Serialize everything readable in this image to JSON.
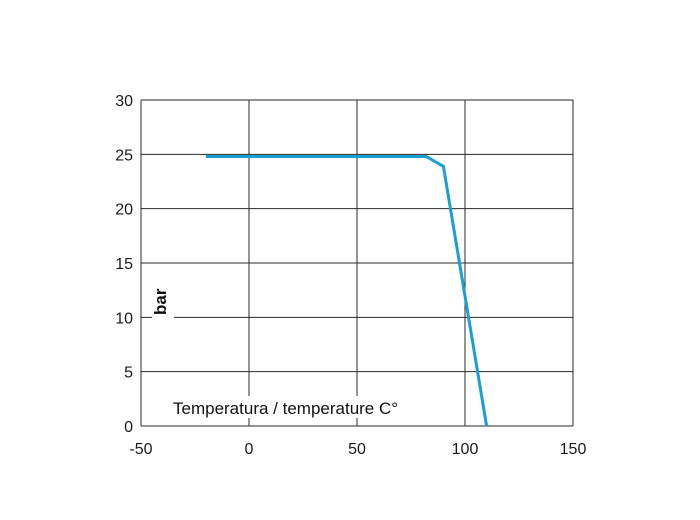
{
  "chart_data": {
    "type": "line",
    "xlabel": "Temperatura / temperature C°",
    "ylabel": "bar",
    "xlim": [
      -50,
      150
    ],
    "ylim": [
      0,
      30
    ],
    "x_ticks": [
      -50,
      0,
      50,
      100,
      150
    ],
    "y_ticks": [
      0,
      5,
      10,
      15,
      20,
      25,
      30
    ],
    "grid": true,
    "series": [
      {
        "color": "#1a9fd4",
        "points": [
          {
            "x": -20,
            "y": 24.8
          },
          {
            "x": 82,
            "y": 24.8
          },
          {
            "x": 90,
            "y": 23.9
          },
          {
            "x": 110,
            "y": 0
          }
        ]
      }
    ]
  }
}
